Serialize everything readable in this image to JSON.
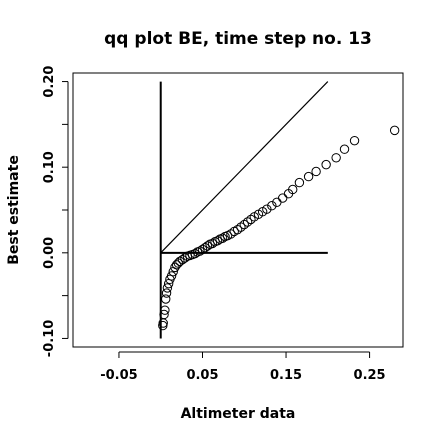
{
  "chart_data": {
    "type": "scatter",
    "title": "qq plot BE, time step no. 13",
    "xlabel": "Altimeter data",
    "ylabel": "Best estimate",
    "xlim": [
      -0.105,
      0.29
    ],
    "ylim": [
      -0.11,
      0.21
    ],
    "x_ticks": [
      -0.05,
      0.05,
      0.15,
      0.25
    ],
    "x_tick_labels": [
      "-0.05",
      "0.05",
      "0.15",
      "0.25"
    ],
    "y_ticks": [
      -0.1,
      -0.05,
      0.0,
      0.05,
      0.1,
      0.15,
      0.2
    ],
    "y_tick_labels": [
      "-0.10",
      "",
      "0.00",
      "",
      "0.10",
      "",
      "0.20"
    ],
    "grid": false,
    "reference_lines": [
      {
        "x": [
          0,
          0.2
        ],
        "y": [
          0,
          0.2
        ]
      },
      {
        "x": [
          0,
          0.2
        ],
        "y": [
          0,
          0
        ]
      },
      {
        "x": [
          0,
          0
        ],
        "y": [
          -0.1,
          0.2
        ]
      }
    ],
    "points": [
      [
        0.0025,
        -0.085
      ],
      [
        0.003,
        -0.082
      ],
      [
        0.004,
        -0.072
      ],
      [
        0.005,
        -0.067
      ],
      [
        0.006,
        -0.054
      ],
      [
        0.007,
        -0.047
      ],
      [
        0.008,
        -0.041
      ],
      [
        0.0095,
        -0.036
      ],
      [
        0.011,
        -0.031
      ],
      [
        0.013,
        -0.027
      ],
      [
        0.015,
        -0.022
      ],
      [
        0.017,
        -0.017
      ],
      [
        0.019,
        -0.014
      ],
      [
        0.021,
        -0.012
      ],
      [
        0.023,
        -0.01
      ],
      [
        0.026,
        -0.008
      ],
      [
        0.029,
        -0.006
      ],
      [
        0.032,
        -0.004
      ],
      [
        0.035,
        -0.003
      ],
      [
        0.038,
        -0.002
      ],
      [
        0.041,
        -0.001
      ],
      [
        0.044,
        0.001
      ],
      [
        0.047,
        0.002
      ],
      [
        0.05,
        0.004
      ],
      [
        0.053,
        0.006
      ],
      [
        0.056,
        0.008
      ],
      [
        0.059,
        0.01
      ],
      [
        0.062,
        0.011
      ],
      [
        0.065,
        0.013
      ],
      [
        0.068,
        0.014
      ],
      [
        0.071,
        0.016
      ],
      [
        0.074,
        0.017
      ],
      [
        0.077,
        0.019
      ],
      [
        0.08,
        0.02
      ],
      [
        0.084,
        0.022
      ],
      [
        0.088,
        0.025
      ],
      [
        0.092,
        0.027
      ],
      [
        0.096,
        0.03
      ],
      [
        0.1,
        0.033
      ],
      [
        0.104,
        0.036
      ],
      [
        0.108,
        0.039
      ],
      [
        0.112,
        0.042
      ],
      [
        0.117,
        0.045
      ],
      [
        0.122,
        0.048
      ],
      [
        0.127,
        0.051
      ],
      [
        0.133,
        0.055
      ],
      [
        0.139,
        0.059
      ],
      [
        0.146,
        0.064
      ],
      [
        0.153,
        0.069
      ],
      [
        0.158,
        0.074
      ],
      [
        0.166,
        0.082
      ],
      [
        0.177,
        0.089
      ],
      [
        0.186,
        0.095
      ],
      [
        0.198,
        0.103
      ],
      [
        0.21,
        0.111
      ],
      [
        0.22,
        0.121
      ],
      [
        0.232,
        0.131
      ],
      [
        0.28,
        0.143
      ]
    ]
  }
}
